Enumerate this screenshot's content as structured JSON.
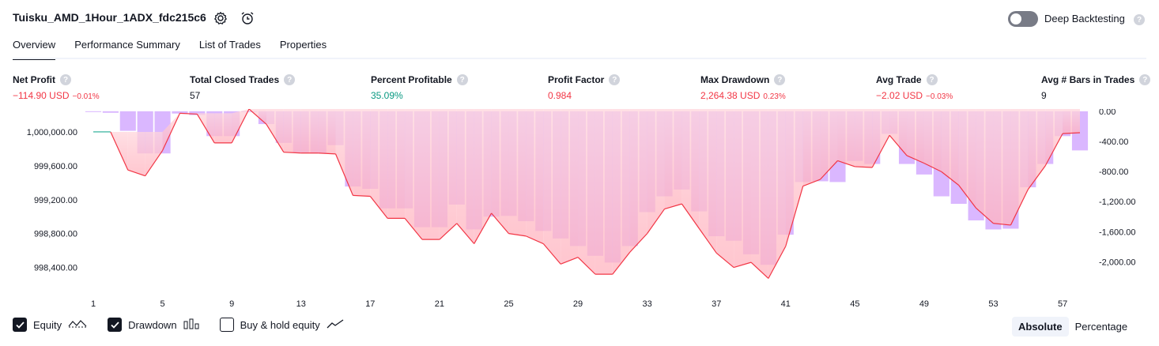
{
  "strategy_title": "Tuisku_AMD_1Hour_1ADX_fdc215c6",
  "header": {
    "settings_icon": "gear-icon",
    "alert_icon": "alarm-clock-plus-icon",
    "deep_backtesting_label": "Deep Backtesting",
    "deep_backtesting_on": false,
    "help_glyph": "?"
  },
  "tabs": [
    {
      "label": "Overview",
      "active": true
    },
    {
      "label": "Performance Summary",
      "active": false
    },
    {
      "label": "List of Trades",
      "active": false
    },
    {
      "label": "Properties",
      "active": false
    }
  ],
  "metrics": [
    {
      "label": "Net Profit",
      "value": "−114.90 USD",
      "pct": "−0.01%",
      "color": "#f23645"
    },
    {
      "label": "Total Closed Trades",
      "value": "57",
      "pct": "",
      "color": "#131722"
    },
    {
      "label": "Percent Profitable",
      "value": "35.09%",
      "pct": "",
      "color": "#089981"
    },
    {
      "label": "Profit Factor",
      "value": "0.984",
      "pct": "",
      "color": "#f23645"
    },
    {
      "label": "Max Drawdown",
      "value": "2,264.38 USD",
      "pct": "0.23%",
      "color": "#f23645"
    },
    {
      "label": "Avg Trade",
      "value": "−2.02 USD",
      "pct": "−0.03%",
      "color": "#f23645"
    },
    {
      "label": "Avg # Bars in Trades",
      "value": "9",
      "pct": "",
      "color": "#131722"
    }
  ],
  "legend": {
    "equity_label": "Equity",
    "equity_checked": true,
    "drawdown_label": "Drawdown",
    "drawdown_checked": true,
    "buyhold_label": "Buy & hold equity",
    "buyhold_checked": false
  },
  "scale_toggle": {
    "absolute": "Absolute",
    "percentage": "Percentage",
    "selected": "Absolute"
  },
  "colors": {
    "equity_loss": "#f23645",
    "equity_gain": "#22ab94",
    "drawdown_bar": "#d4aaff",
    "drawdown_fill": "#f7a8b8",
    "text": "#131722"
  },
  "chart_data": {
    "type": "area",
    "x": [
      1,
      2,
      3,
      4,
      5,
      6,
      7,
      8,
      9,
      10,
      11,
      12,
      13,
      14,
      15,
      16,
      17,
      18,
      19,
      20,
      21,
      22,
      23,
      24,
      25,
      26,
      27,
      28,
      29,
      30,
      31,
      32,
      33,
      34,
      35,
      36,
      37,
      38,
      39,
      40,
      41,
      42,
      43,
      44,
      45,
      46,
      47,
      48,
      49,
      50,
      51,
      52,
      53,
      54,
      55,
      56,
      57,
      58
    ],
    "xticks": [
      "1",
      "5",
      "9",
      "13",
      "17",
      "21",
      "25",
      "29",
      "33",
      "37",
      "41",
      "45",
      "49",
      "53",
      "57"
    ],
    "equity_axis": {
      "ticks": [
        "1,000,000.00",
        "999,600.00",
        "999,200.00",
        "998,800.00",
        "998,400.00"
      ],
      "ylim": [
        998200,
        1000270
      ]
    },
    "drawdown_axis": {
      "ticks": [
        "0.00",
        "-400.00",
        "-800.00",
        "-1,200.00",
        "-1,600.00",
        "-2,000.00"
      ],
      "ylim": [
        -2300,
        30
      ]
    },
    "series": [
      {
        "name": "Equity",
        "values": [
          1000000,
          1000000,
          999550,
          999480,
          999780,
          1000220,
          1000210,
          999870,
          999870,
          1000270,
          1000090,
          999760,
          999750,
          999750,
          999740,
          999250,
          999240,
          998980,
          998980,
          998730,
          998730,
          998920,
          998680,
          999040,
          998800,
          998770,
          998680,
          998440,
          998520,
          998320,
          998320,
          998580,
          998800,
          999090,
          999150,
          998860,
          998570,
          998400,
          998460,
          998270,
          998650,
          999360,
          999440,
          999660,
          999590,
          999580,
          999960,
          999720,
          999630,
          999530,
          999370,
          999100,
          998920,
          998900,
          999320,
          999600,
          999980,
          999990
        ],
        "color": "#f23645"
      },
      {
        "name": "Drawdown",
        "values": [
          0,
          -20,
          -260,
          -560,
          -560,
          -30,
          -50,
          -330,
          -330,
          -10,
          -170,
          -420,
          -550,
          -560,
          -450,
          -1000,
          -1030,
          -1290,
          -1290,
          -1540,
          -1540,
          -1240,
          -1570,
          -1400,
          -1390,
          -1460,
          -1590,
          -1690,
          -1790,
          -1920,
          -2010,
          -1790,
          -1340,
          -1130,
          -1040,
          -1330,
          -1660,
          -1720,
          -1900,
          -2040,
          -1640,
          -940,
          -930,
          -940,
          -660,
          -700,
          -300,
          -700,
          -840,
          -1130,
          -1230,
          -1450,
          -1570,
          -1560,
          -1010,
          -700,
          -330,
          -520
        ],
        "color": "#d4aaff"
      }
    ]
  }
}
